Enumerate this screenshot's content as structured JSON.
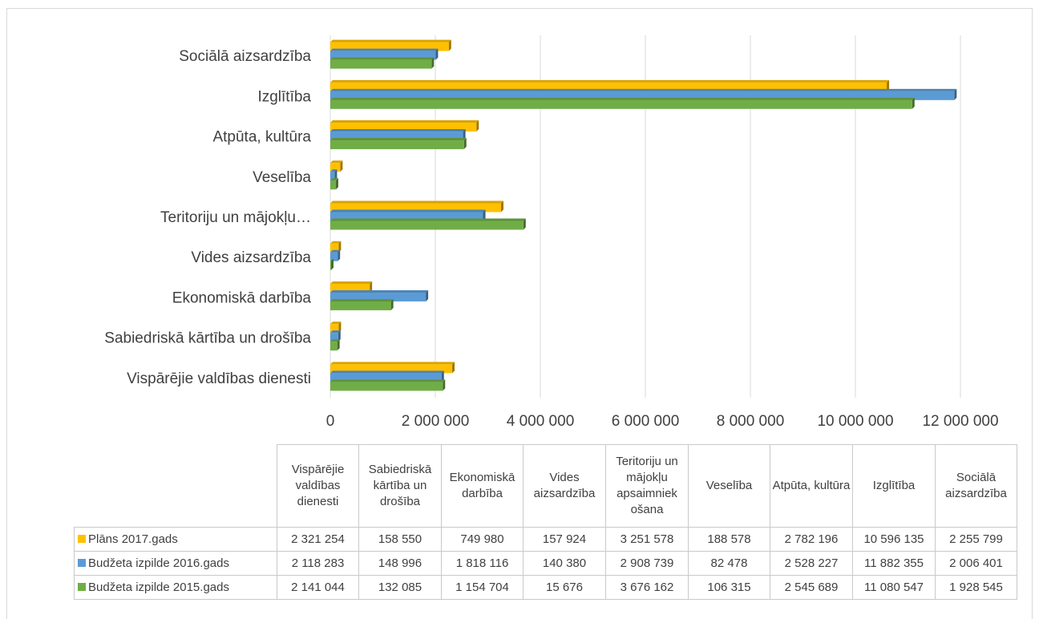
{
  "chart_data": {
    "type": "bar",
    "orientation": "horizontal",
    "categories": [
      "Vispārējie valdības dienesti",
      "Sabiedriskā kārtība un drošība",
      "Ekonomiskā darbība",
      "Vides aizsardzība",
      "Teritoriju un mājokļu apsaimniekošana",
      "Veselība",
      "Atpūta, kultūra",
      "Izglītība",
      "Sociālā aizsardzība"
    ],
    "axis_category_labels": [
      "Vispārējie valdības dienesti",
      "Sabiedriskā kārtība un drošība",
      "Ekonomiskā darbība",
      "Vides aizsardzība",
      "Teritoriju un mājokļu…",
      "Veselība",
      "Atpūta, kultūra",
      "Izglītība",
      "Sociālā aizsardzība"
    ],
    "table_category_labels": [
      "Vispārējie valdības dienesti",
      "Sabiedriskā kārtība un drošība",
      "Ekonomiskā darbība",
      "Vides aizsardzība",
      "Teritoriju un mājokļu apsaimniek ošana",
      "Veselība",
      "Atpūta, kultūra",
      "Izglītība",
      "Sociālā aizsardzība"
    ],
    "series": [
      {
        "name": "Plāns 2017.gads",
        "color": "#ffc000",
        "values": [
          2321254,
          158550,
          749980,
          157924,
          3251578,
          188578,
          2782196,
          10596135,
          2255799
        ],
        "display": [
          "2 321 254",
          "158 550",
          "749 980",
          "157 924",
          "3 251 578",
          "188 578",
          "2 782 196",
          "10 596 135",
          "2 255 799"
        ]
      },
      {
        "name": "Budžeta izpilde 2016.gads",
        "color": "#5b9bd5",
        "values": [
          2118283,
          148996,
          1818116,
          140380,
          2908739,
          82478,
          2528227,
          11882355,
          2006401
        ],
        "display": [
          "2 118 283",
          "148 996",
          "1 818 116",
          "140 380",
          "2 908 739",
          "82 478",
          "2 528 227",
          "11 882 355",
          "2 006 401"
        ]
      },
      {
        "name": "Budžeta izpilde 2015.gads",
        "color": "#70ad47",
        "values": [
          2141044,
          132085,
          1154704,
          15676,
          3676162,
          106315,
          2545689,
          11080547,
          1928545
        ],
        "display": [
          "2 141 044",
          "132 085",
          "1 154 704",
          "15 676",
          "3 676 162",
          "106 315",
          "2 545 689",
          "11 080 547",
          "1 928 545"
        ]
      }
    ],
    "xlim": [
      0,
      12000000
    ],
    "x_ticks": [
      0,
      2000000,
      4000000,
      6000000,
      8000000,
      10000000,
      12000000
    ],
    "x_tick_labels": [
      "0",
      "2 000 000",
      "4 000 000",
      "6 000 000",
      "8 000 000",
      "10 000 000",
      "12 000 000"
    ],
    "grid": "vertical",
    "legend": "data-table",
    "gridline_color": "#d9d9d9",
    "text_color": "#404040"
  }
}
